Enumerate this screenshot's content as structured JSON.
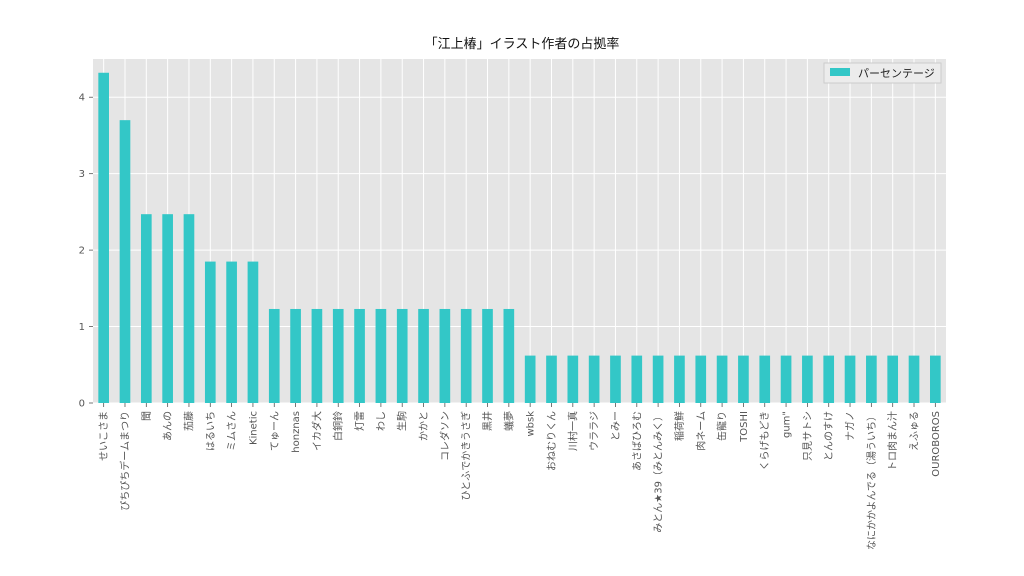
{
  "chart_data": {
    "type": "bar",
    "title": "「江上椿」イラスト作者の占拠率",
    "xlabel": "",
    "ylabel": "",
    "ylim": [
      0,
      4.5
    ],
    "yticks": [
      0,
      1,
      2,
      3,
      4
    ],
    "grid": true,
    "legend_position": "top-right",
    "bar_color": "#33c7c7",
    "background_color": "#e5e5e5",
    "categories": [
      "せいこさま",
      "ぴちぴちデームまつり",
      "聞",
      "あんの",
      "茄藤",
      "はるいち",
      "ミムさん",
      "Kinetic",
      "てゅーん",
      "honznas",
      "イカダ大",
      "白銅鈴",
      "灯雷",
      "わし",
      "生駒",
      "かかと",
      "コレダソン",
      "ひとふでかきうさぎ",
      "黒井",
      "蟻夢",
      "wbsk",
      "おねむりくん",
      "川村一真",
      "ウララジ",
      "とみー",
      "あさばひろむ",
      "みとん★39（みとんみく）",
      "稲荷鮮",
      "肉ネーム",
      "缶龍り",
      "TOSHI",
      "くらげもどき",
      "gum\"",
      "只見サトシ",
      "とんのすけ",
      "ナガノ",
      "なにかかよんでる（湯ういち）",
      "トロ肉まん汁",
      "えふゅる",
      "OUROBOROS"
    ],
    "series": [
      {
        "name": "パーセンテージ",
        "values": [
          4.32,
          3.7,
          2.47,
          2.47,
          2.47,
          1.85,
          1.85,
          1.85,
          1.23,
          1.23,
          1.23,
          1.23,
          1.23,
          1.23,
          1.23,
          1.23,
          1.23,
          1.23,
          1.23,
          1.23,
          0.62,
          0.62,
          0.62,
          0.62,
          0.62,
          0.62,
          0.62,
          0.62,
          0.62,
          0.62,
          0.62,
          0.62,
          0.62,
          0.62,
          0.62,
          0.62,
          0.62,
          0.62,
          0.62,
          0.62
        ]
      }
    ]
  }
}
